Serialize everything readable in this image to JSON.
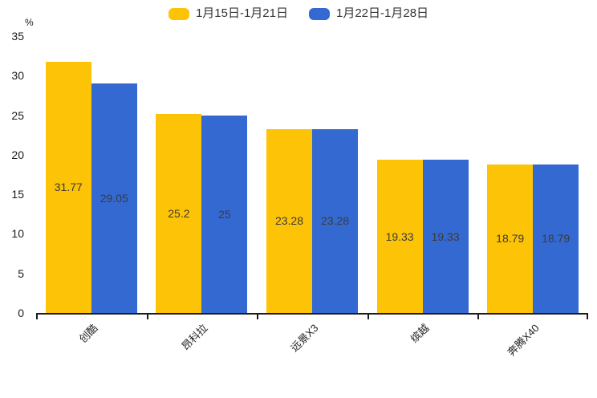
{
  "chart_data": {
    "type": "bar",
    "title": "",
    "xlabel": "",
    "ylabel": "%",
    "categories": [
      "创酷",
      "昂科拉",
      "远景X3",
      "缤越",
      "奔腾X40"
    ],
    "series": [
      {
        "name": "1月15日-1月21日",
        "color": "#FDC306",
        "values": [
          31.77,
          25.2,
          23.28,
          19.33,
          18.79
        ]
      },
      {
        "name": "1月22日-1月28日",
        "color": "#3469D2",
        "values": [
          29.05,
          25,
          23.28,
          19.33,
          18.79
        ]
      }
    ],
    "ylim": [
      0,
      35
    ],
    "ytick_step": 5,
    "ytick_labels": [
      "0",
      "5",
      "10",
      "15",
      "20",
      "25",
      "30",
      "35"
    ],
    "grid": false,
    "legend_position": "top-center",
    "value_labels": "inside-center",
    "xlabel_rotation": -45,
    "value_label_color": "#3b3b3b",
    "axis_color": "#1c1c1c"
  }
}
